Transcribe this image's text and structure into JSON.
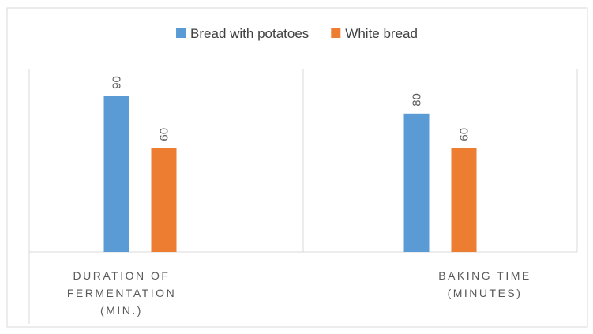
{
  "chart_data": {
    "type": "bar",
    "categories": [
      [
        "DURATION OF",
        "FERMENTATION",
        "(MIN.)"
      ],
      [
        "BAKING TIME",
        "(MINUTES)"
      ]
    ],
    "series": [
      {
        "name": "Bread with potatoes",
        "color": "#5B9BD5",
        "values": [
          90,
          80
        ]
      },
      {
        "name": "White bread",
        "color": "#ED7D31",
        "values": [
          60,
          60
        ]
      }
    ],
    "ylim": [
      0,
      100
    ],
    "grid": false,
    "data_labels": true,
    "legend_position": "top"
  }
}
